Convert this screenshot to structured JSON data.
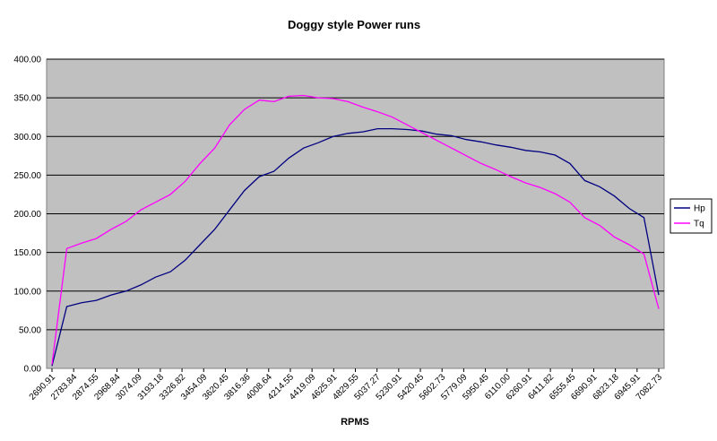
{
  "chart_data": {
    "type": "line",
    "title": "Doggy style Power runs",
    "xlabel": "RPMS",
    "ylabel": "",
    "ylim": [
      0,
      400
    ],
    "yticks": [
      "0.00",
      "50.00",
      "100.00",
      "150.00",
      "200.00",
      "250.00",
      "300.00",
      "350.00",
      "400.00"
    ],
    "xtick_labels": [
      "2690.91",
      "2783.84",
      "2874.55",
      "2968.84",
      "3074.09",
      "3193.18",
      "3326.82",
      "3454.09",
      "3620.45",
      "3816.36",
      "4008.64",
      "4214.55",
      "4419.09",
      "4625.91",
      "4829.55",
      "5037.27",
      "5230.91",
      "5420.45",
      "5602.73",
      "5779.09",
      "5950.45",
      "6110.00",
      "6260.91",
      "6411.82",
      "6555.45",
      "6690.91",
      "6823.18",
      "6945.91",
      "7082.73"
    ],
    "grid": true,
    "legend_position": "right",
    "colors": {
      "plot_background": "#c0c0c0",
      "grid": "#000000",
      "Hp": "#000080",
      "Tq": "#ff00ff"
    },
    "series": [
      {
        "name": "Hp",
        "values": [
          3,
          80,
          85,
          88,
          95,
          100,
          108,
          118,
          125,
          140,
          160,
          180,
          205,
          230,
          248,
          255,
          272,
          285,
          292,
          300,
          304,
          306,
          310,
          310,
          309,
          307,
          303,
          301,
          296,
          293,
          289,
          286,
          282,
          280,
          276,
          265,
          243,
          235,
          223,
          207,
          195,
          95
        ]
      },
      {
        "name": "Tq",
        "values": [
          5,
          155,
          162,
          168,
          180,
          190,
          205,
          215,
          225,
          242,
          265,
          285,
          315,
          335,
          347,
          345,
          352,
          353,
          350,
          349,
          345,
          338,
          332,
          325,
          315,
          305,
          295,
          285,
          275,
          265,
          257,
          248,
          240,
          234,
          226,
          215,
          195,
          185,
          170,
          160,
          148,
          77
        ]
      }
    ]
  }
}
